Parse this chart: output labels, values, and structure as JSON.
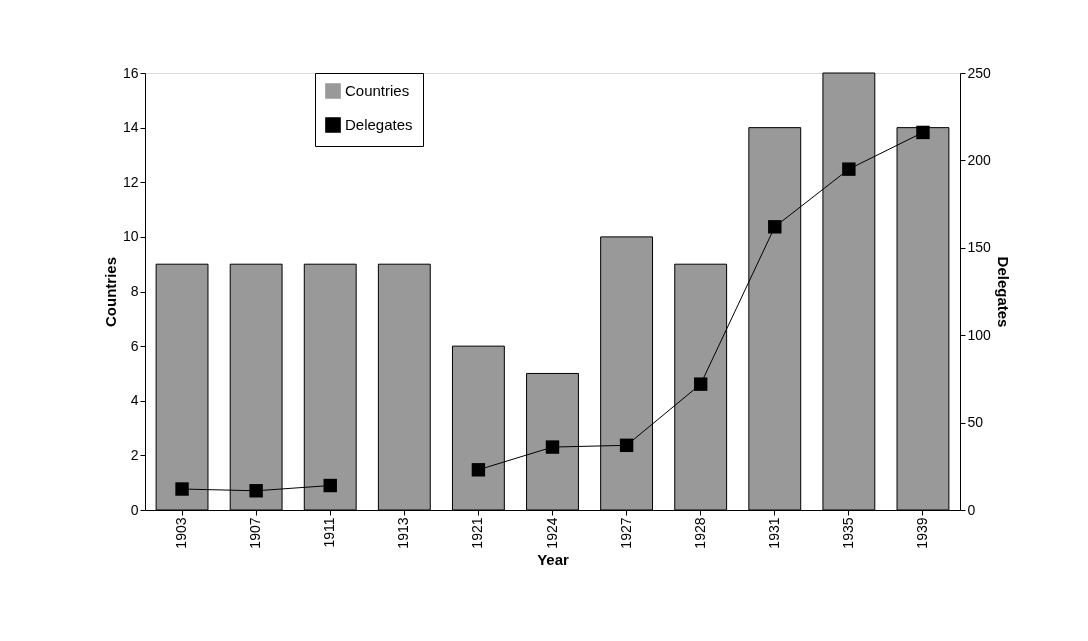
{
  "chart_data": {
    "type": "bar",
    "xlabel": "Year",
    "ylabel": "Countries",
    "y2label": "Delegates",
    "categories": [
      "1903",
      "1907",
      "1911",
      "1913",
      "1921",
      "1924",
      "1927",
      "1928",
      "1931",
      "1935",
      "1939"
    ],
    "series": [
      {
        "name": "Countries",
        "color": "#999999",
        "values": [
          9,
          9,
          9,
          9,
          6,
          5,
          10,
          9,
          14,
          16,
          14
        ]
      },
      {
        "name": "Delegates",
        "type": "line",
        "axis": "y2",
        "color": "#000000",
        "marker": "square",
        "values": [
          12,
          11,
          14,
          null,
          23,
          36,
          37,
          72,
          162,
          195,
          216
        ]
      }
    ],
    "ylim": [
      0,
      16
    ],
    "yticks": [
      0,
      2,
      4,
      6,
      8,
      10,
      12,
      14,
      16
    ],
    "y2lim": [
      0,
      250
    ],
    "y2ticks": [
      0,
      50,
      100,
      150,
      200,
      250
    ],
    "grid": false,
    "legend": "top"
  }
}
